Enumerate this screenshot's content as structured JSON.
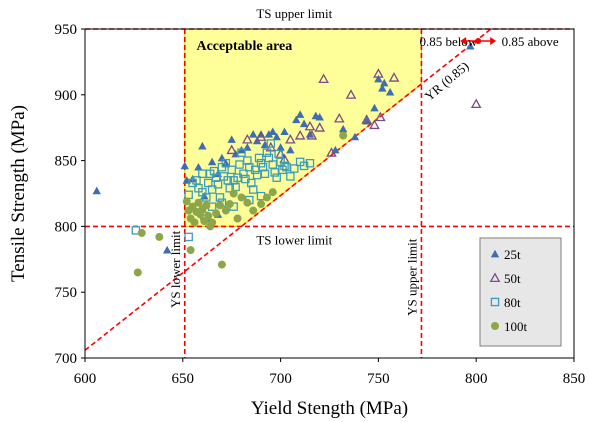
{
  "chart_data": {
    "type": "scatter",
    "xlabel": "Yield Stength (MPa)",
    "ylabel": "Tensile Strength (MPa)",
    "xlim": [
      600,
      850
    ],
    "ylim": [
      700,
      950
    ],
    "xticks": [
      600,
      650,
      700,
      750,
      800,
      850
    ],
    "yticks": [
      700,
      750,
      800,
      850,
      900,
      950
    ],
    "grid": false,
    "legend_position": "lower-right",
    "limits": {
      "ys_lower": 651,
      "ys_upper": 772,
      "ts_lower": 800,
      "ts_upper": 950,
      "yr": 0.85
    },
    "annotations": {
      "ts_upper": "TS upper limit",
      "ts_lower": "TS lower limit",
      "ys_lower": "YS lower limit",
      "ys_upper": "YS upper limit",
      "yr": "YR (0.85)",
      "below": "0.85 below",
      "above": "0.85 above",
      "acceptable": "Acceptable area"
    },
    "colors": {
      "limit_line": "#ff0000",
      "acceptable_fill": "#ffff99",
      "acceptable_edge": "#e6c200",
      "legend_bg": "#e7e7e7"
    },
    "series": [
      {
        "name": "25t",
        "marker": "triangle-filled",
        "color": "#3f6db1",
        "points": [
          [
            606,
            827
          ],
          [
            651,
            846
          ],
          [
            652,
            835
          ],
          [
            655,
            836
          ],
          [
            658,
            845
          ],
          [
            660,
            861
          ],
          [
            661,
            823
          ],
          [
            662,
            817
          ],
          [
            665,
            849
          ],
          [
            668,
            840
          ],
          [
            670,
            852
          ],
          [
            672,
            848
          ],
          [
            675,
            866
          ],
          [
            677,
            855
          ],
          [
            680,
            858
          ],
          [
            683,
            860
          ],
          [
            686,
            870
          ],
          [
            688,
            865
          ],
          [
            690,
            870
          ],
          [
            692,
            862
          ],
          [
            694,
            870
          ],
          [
            696,
            872
          ],
          [
            698,
            868
          ],
          [
            700,
            860
          ],
          [
            702,
            872
          ],
          [
            705,
            858
          ],
          [
            708,
            881
          ],
          [
            710,
            885
          ],
          [
            712,
            878
          ],
          [
            715,
            870
          ],
          [
            718,
            884
          ],
          [
            720,
            883
          ],
          [
            728,
            858
          ],
          [
            732,
            874
          ],
          [
            738,
            868
          ],
          [
            744,
            880
          ],
          [
            748,
            890
          ],
          [
            750,
            912
          ],
          [
            752,
            905
          ],
          [
            753,
            909
          ],
          [
            756,
            902
          ],
          [
            797,
            937
          ],
          [
            642,
            782
          ],
          [
            663,
            806
          ],
          [
            668,
            809
          ]
        ]
      },
      {
        "name": "50t",
        "marker": "triangle-open",
        "color": "#7a4b8a",
        "points": [
          [
            683,
            866
          ],
          [
            690,
            868
          ],
          [
            695,
            860
          ],
          [
            700,
            855
          ],
          [
            705,
            866
          ],
          [
            710,
            869
          ],
          [
            715,
            876
          ],
          [
            716,
            869
          ],
          [
            720,
            875
          ],
          [
            722,
            912
          ],
          [
            726,
            856
          ],
          [
            730,
            882
          ],
          [
            736,
            900
          ],
          [
            744,
            881
          ],
          [
            748,
            877
          ],
          [
            750,
            916
          ],
          [
            751,
            883
          ],
          [
            758,
            913
          ],
          [
            800,
            893
          ],
          [
            675,
            858
          ],
          [
            702,
            851
          ]
        ]
      },
      {
        "name": "80t",
        "marker": "square-open",
        "color": "#3b9cbf",
        "points": [
          [
            626,
            797
          ],
          [
            653,
            792
          ],
          [
            653,
            824
          ],
          [
            655,
            833
          ],
          [
            657,
            835
          ],
          [
            658,
            829
          ],
          [
            660,
            840
          ],
          [
            660,
            826
          ],
          [
            662,
            822
          ],
          [
            663,
            833
          ],
          [
            664,
            840
          ],
          [
            665,
            828
          ],
          [
            666,
            842
          ],
          [
            667,
            837
          ],
          [
            668,
            832
          ],
          [
            669,
            822
          ],
          [
            670,
            845
          ],
          [
            671,
            838
          ],
          [
            672,
            848
          ],
          [
            673,
            835
          ],
          [
            674,
            829
          ],
          [
            675,
            843
          ],
          [
            676,
            835
          ],
          [
            677,
            830
          ],
          [
            678,
            837
          ],
          [
            679,
            847
          ],
          [
            680,
            856
          ],
          [
            681,
            840
          ],
          [
            682,
            836
          ],
          [
            683,
            850
          ],
          [
            684,
            845
          ],
          [
            685,
            833
          ],
          [
            686,
            828
          ],
          [
            687,
            843
          ],
          [
            688,
            839
          ],
          [
            689,
            852
          ],
          [
            690,
            848
          ],
          [
            691,
            845
          ],
          [
            692,
            840
          ],
          [
            693,
            856
          ],
          [
            694,
            852
          ],
          [
            695,
            863
          ],
          [
            696,
            847
          ],
          [
            697,
            841
          ],
          [
            698,
            837
          ],
          [
            699,
            855
          ],
          [
            700,
            849
          ],
          [
            701,
            843
          ],
          [
            702,
            846
          ],
          [
            703,
            845
          ],
          [
            705,
            838
          ],
          [
            707,
            844
          ],
          [
            710,
            849
          ],
          [
            712,
            846
          ],
          [
            715,
            848
          ],
          [
            661,
            808
          ],
          [
            665,
            815
          ],
          [
            670,
            818
          ],
          [
            676,
            815
          ],
          [
            684,
            820
          ],
          [
            690,
            823
          ]
        ]
      },
      {
        "name": "100t",
        "marker": "circle-filled",
        "color": "#8da64a",
        "points": [
          [
            627,
            765
          ],
          [
            629,
            795
          ],
          [
            638,
            792
          ],
          [
            652,
            819
          ],
          [
            653,
            812
          ],
          [
            654,
            806
          ],
          [
            655,
            815
          ],
          [
            656,
            803
          ],
          [
            657,
            811
          ],
          [
            658,
            818
          ],
          [
            659,
            809
          ],
          [
            660,
            813
          ],
          [
            661,
            804
          ],
          [
            662,
            816
          ],
          [
            663,
            808
          ],
          [
            665,
            803
          ],
          [
            667,
            810
          ],
          [
            669,
            816
          ],
          [
            670,
            771
          ],
          [
            672,
            812
          ],
          [
            674,
            817
          ],
          [
            676,
            825
          ],
          [
            678,
            806
          ],
          [
            680,
            822
          ],
          [
            683,
            818
          ],
          [
            686,
            812
          ],
          [
            690,
            817
          ],
          [
            693,
            822
          ],
          [
            696,
            826
          ],
          [
            732,
            869
          ],
          [
            654,
            782
          ],
          [
            664,
            800
          ]
        ]
      }
    ]
  }
}
